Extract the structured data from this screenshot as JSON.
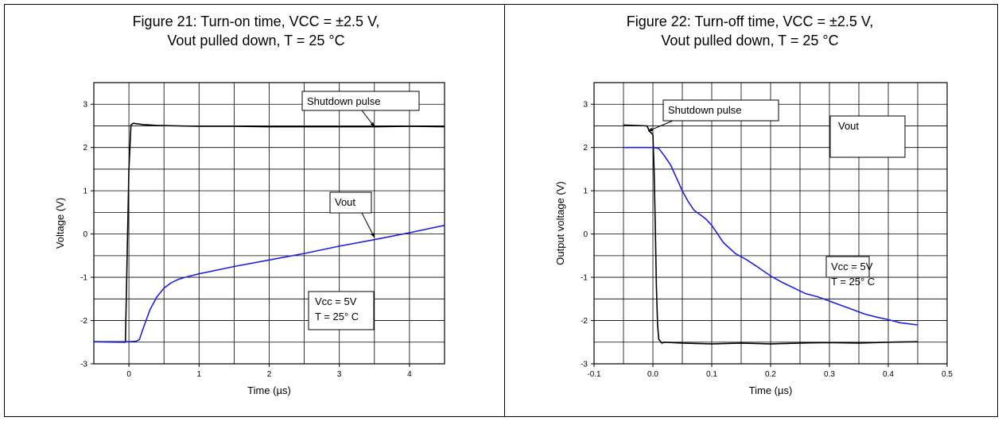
{
  "chart_data": [
    {
      "type": "line",
      "title": [
        "Figure 21: Turn-on time, VCC = ±2.5 V,",
        "Vout pulled down, T = 25 °C"
      ],
      "xlabel": "Time (µs)",
      "ylabel": "Voltage (V)",
      "xlim": [
        -0.5,
        4.5
      ],
      "ylim": [
        -3,
        3.5
      ],
      "xticks": [
        "0",
        "1",
        "2",
        "3",
        "4"
      ],
      "yticks": [
        "-3",
        "-2",
        "-1",
        "0",
        "1",
        "2",
        "3"
      ],
      "grid": true,
      "series": [
        {
          "name": "Shutdown pulse",
          "color": "#000000",
          "x": [
            -0.5,
            -0.05,
            0.0,
            0.03,
            0.06,
            0.1,
            0.2,
            0.4,
            0.7,
            1.0,
            1.5,
            2.0,
            2.5,
            3.0,
            3.5,
            4.0,
            4.5
          ],
          "y": [
            -2.49,
            -2.5,
            1.5,
            2.52,
            2.56,
            2.55,
            2.53,
            2.51,
            2.5,
            2.49,
            2.49,
            2.48,
            2.48,
            2.48,
            2.48,
            2.49,
            2.48
          ]
        },
        {
          "name": "Vout",
          "color": "#1f1fe0",
          "x": [
            -0.5,
            0.0,
            0.1,
            0.15,
            0.2,
            0.3,
            0.4,
            0.5,
            0.6,
            0.7,
            0.8,
            1.0,
            1.5,
            2.0,
            2.5,
            3.0,
            3.5,
            4.0,
            4.5
          ],
          "y": [
            -2.49,
            -2.49,
            -2.48,
            -2.44,
            -2.2,
            -1.75,
            -1.45,
            -1.25,
            -1.13,
            -1.05,
            -1.0,
            -0.92,
            -0.75,
            -0.6,
            -0.45,
            -0.28,
            -0.13,
            0.03,
            0.2
          ]
        }
      ],
      "annotations": [
        {
          "text": "Shutdown pulse",
          "points_to": [
            3.5,
            2.48
          ]
        },
        {
          "text": "Vout",
          "points_to": [
            3.5,
            -0.08
          ]
        },
        {
          "text": [
            "Vcc = 5V",
            "T =  25° C"
          ]
        }
      ]
    },
    {
      "type": "line",
      "title": [
        "Figure 22: Turn-off time, VCC = ±2.5 V,",
        "Vout pulled down, T = 25 °C"
      ],
      "xlabel": "Time (µs)",
      "ylabel": "Output  voltage (V)",
      "xlim": [
        -0.1,
        0.5
      ],
      "ylim": [
        -3,
        3.5
      ],
      "xticks": [
        "-0.1",
        "0.0",
        "0.1",
        "0.2",
        "0.3",
        "0.4",
        "0.5"
      ],
      "yticks": [
        "-3",
        "-2",
        "-1",
        "0",
        "1",
        "2",
        "3"
      ],
      "grid": true,
      "series": [
        {
          "name": "Shutdown pulse",
          "color": "#000000",
          "x": [
            -0.05,
            -0.01,
            -0.006,
            0.0,
            0.002,
            0.004,
            0.006,
            0.008,
            0.01,
            0.015,
            0.02,
            0.05,
            0.1,
            0.15,
            0.2,
            0.25,
            0.3,
            0.35,
            0.4,
            0.45
          ],
          "y": [
            2.52,
            2.5,
            2.38,
            2.3,
            1.5,
            0.2,
            -1.2,
            -2.1,
            -2.43,
            -2.52,
            -2.5,
            -2.52,
            -2.54,
            -2.52,
            -2.54,
            -2.52,
            -2.51,
            -2.52,
            -2.5,
            -2.49
          ]
        },
        {
          "name": "Vout",
          "color": "#1f1fe0",
          "x": [
            -0.05,
            0.0,
            0.01,
            0.02,
            0.03,
            0.04,
            0.05,
            0.06,
            0.07,
            0.08,
            0.09,
            0.1,
            0.12,
            0.14,
            0.16,
            0.18,
            0.2,
            0.22,
            0.24,
            0.26,
            0.28,
            0.3,
            0.32,
            0.34,
            0.36,
            0.38,
            0.4,
            0.42,
            0.45
          ],
          "y": [
            2.0,
            2.0,
            1.98,
            1.8,
            1.6,
            1.3,
            1.0,
            0.75,
            0.55,
            0.45,
            0.35,
            0.2,
            -0.2,
            -0.45,
            -0.6,
            -0.78,
            -0.97,
            -1.12,
            -1.25,
            -1.38,
            -1.45,
            -1.55,
            -1.65,
            -1.75,
            -1.85,
            -1.92,
            -1.98,
            -2.05,
            -2.1
          ]
        }
      ],
      "annotations": [
        {
          "text": "Shutdown pulse",
          "points_to": [
            -0.008,
            2.38
          ]
        },
        {
          "text": "Vout",
          "points_to": [
            0.27,
            -1.4
          ]
        },
        {
          "text": [
            "Vcc = 5V",
            "T =  25° C"
          ]
        }
      ]
    }
  ]
}
